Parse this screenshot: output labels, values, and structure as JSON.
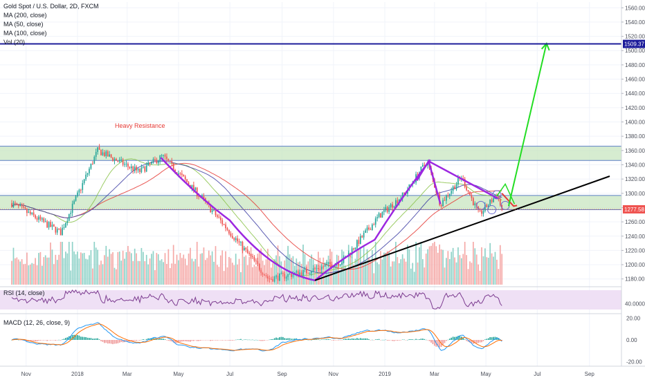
{
  "legend": {
    "symbol": "Gold Spot / U.S. Dollar, 2D, FXCM",
    "ma200": "MA (200, close)",
    "ma50": "MA (50, close)",
    "ma100": "MA (100, close)",
    "vol": "Vol (20)"
  },
  "panes": {
    "rsi_label": "RSI (14, close)",
    "macd_label": "MACD (12, 26, close, 9)"
  },
  "annotation": "Heavy Resistance",
  "colors": {
    "up": "#26a69a",
    "down": "#ef5350",
    "up_vol": "#8fd2c8",
    "down_vol": "#f5a9a7",
    "purple": "#9c27e0",
    "resistance_line": "#1c1c9a",
    "zone": "#c8e6c0",
    "arrow_up": "#22dd22",
    "arrow_red": "#e53935",
    "rsi_bg": "#efe0f5",
    "rsi_line": "#7b3a8f",
    "macd_line": "#2196f3",
    "signal_line": "#ff6d00"
  },
  "chart_data": {
    "type": "candlestick",
    "title": "Gold Spot / U.S. Dollar, 2D, FXCM",
    "price_axis_ticks": [
      "1560.00",
      "1540.00",
      "1520.00",
      "1500.00",
      "1480.00",
      "1460.00",
      "1440.00",
      "1420.00",
      "1400.00",
      "1380.00",
      "1360.00",
      "1340.00",
      "1320.00",
      "1300.00",
      "1280.00",
      "1260.00",
      "1240.00",
      "1220.00",
      "1200.00",
      "1180.00"
    ],
    "ylim": [
      1172,
      1568
    ],
    "time_axis_ticks": [
      "Nov",
      "2018",
      "Mar",
      "May",
      "Jul",
      "Sep",
      "Nov",
      "2019",
      "Mar",
      "May",
      "Jul",
      "Sep"
    ],
    "current_price": "1277.58",
    "resistance_level": "1509.37",
    "resistance_zones": [
      [
        1346,
        1366
      ],
      [
        1277,
        1297
      ]
    ],
    "rsi": {
      "level": "40.0000",
      "ylim": [
        20,
        80
      ]
    },
    "macd": {
      "ticks": [
        "20.00",
        "0.00",
        "-20.00"
      ],
      "ylim": [
        -24,
        24
      ]
    },
    "trend_points": [
      {
        "date": "2017-10-15",
        "price": 1286
      },
      {
        "date": "2017-12-12",
        "price": 1245
      },
      {
        "date": "2018-01-25",
        "price": 1360
      },
      {
        "date": "2018-03-15",
        "price": 1330
      },
      {
        "date": "2018-04-12",
        "price": 1352
      },
      {
        "date": "2018-05-25",
        "price": 1298
      },
      {
        "date": "2018-06-28",
        "price": 1250
      },
      {
        "date": "2018-08-16",
        "price": 1180
      },
      {
        "date": "2018-09-28",
        "price": 1190
      },
      {
        "date": "2018-11-12",
        "price": 1205
      },
      {
        "date": "2018-12-25",
        "price": 1268
      },
      {
        "date": "2019-01-25",
        "price": 1300
      },
      {
        "date": "2019-02-20",
        "price": 1345
      },
      {
        "date": "2019-03-08",
        "price": 1285
      },
      {
        "date": "2019-04-02",
        "price": 1323
      },
      {
        "date": "2019-04-23",
        "price": 1270
      },
      {
        "date": "2019-05-14",
        "price": 1298
      },
      {
        "date": "2019-05-20",
        "price": 1277.58
      }
    ],
    "drawings": {
      "cup_purple": [
        [
          "2018-04-10",
          1350
        ],
        [
          "2018-07-01",
          1262
        ],
        [
          "2018-08-20",
          1205
        ],
        [
          "2018-10-10",
          1178
        ],
        [
          "2018-12-20",
          1235
        ],
        [
          "2019-02-24",
          1347
        ]
      ],
      "descending_line": [
        [
          "2019-02-22",
          1345
        ],
        [
          "2019-05-15",
          1293
        ]
      ],
      "rising_support": [
        [
          "2018-10-10",
          1178
        ],
        [
          "2019-09-25",
          1324
        ]
      ],
      "projection_up": [
        [
          "2019-05-28",
          1282
        ],
        [
          "2019-07-12",
          1510
        ]
      ]
    }
  }
}
